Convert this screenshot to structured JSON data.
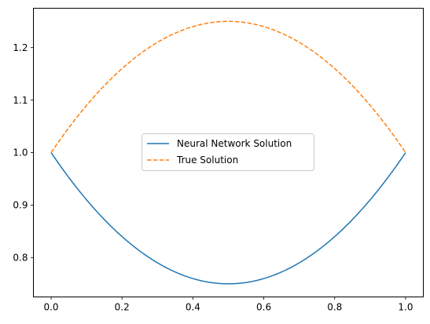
{
  "chart_data": {
    "type": "line",
    "title": "",
    "xlabel": "",
    "ylabel": "",
    "xlim": [
      -0.05,
      1.05
    ],
    "ylim": [
      0.725,
      1.275
    ],
    "xticks": [
      {
        "value": 0.0,
        "label": "0.0"
      },
      {
        "value": 0.2,
        "label": "0.2"
      },
      {
        "value": 0.4,
        "label": "0.4"
      },
      {
        "value": 0.6,
        "label": "0.6"
      },
      {
        "value": 0.8,
        "label": "0.8"
      },
      {
        "value": 1.0,
        "label": "1.0"
      }
    ],
    "yticks": [
      {
        "value": 0.8,
        "label": "0.8"
      },
      {
        "value": 0.9,
        "label": "0.9"
      },
      {
        "value": 1.0,
        "label": "1.0"
      },
      {
        "value": 1.1,
        "label": "1.1"
      },
      {
        "value": 1.2,
        "label": "1.2"
      }
    ],
    "grid": false,
    "legend_position": "center",
    "x": [
      0.0,
      0.05,
      0.1,
      0.15,
      0.2,
      0.25,
      0.3,
      0.35,
      0.4,
      0.45,
      0.5,
      0.55,
      0.6,
      0.65,
      0.7,
      0.75,
      0.8,
      0.85,
      0.9,
      0.95,
      1.0
    ],
    "series": [
      {
        "name": "Neural Network Solution",
        "color": "#1f77b4",
        "style": "solid",
        "values": [
          1.0,
          0.9525,
          0.91,
          0.8725,
          0.84,
          0.8125,
          0.79,
          0.7725,
          0.76,
          0.7525,
          0.75,
          0.7525,
          0.76,
          0.7725,
          0.79,
          0.8125,
          0.84,
          0.8725,
          0.91,
          0.9525,
          1.0
        ]
      },
      {
        "name": "True Solution",
        "color": "#ff7f0e",
        "style": "dashed",
        "values": [
          1.0,
          1.0475,
          1.09,
          1.1275,
          1.16,
          1.1875,
          1.21,
          1.2275,
          1.24,
          1.2475,
          1.25,
          1.2475,
          1.24,
          1.2275,
          1.21,
          1.1875,
          1.16,
          1.1275,
          1.09,
          1.0475,
          1.0
        ]
      }
    ]
  }
}
